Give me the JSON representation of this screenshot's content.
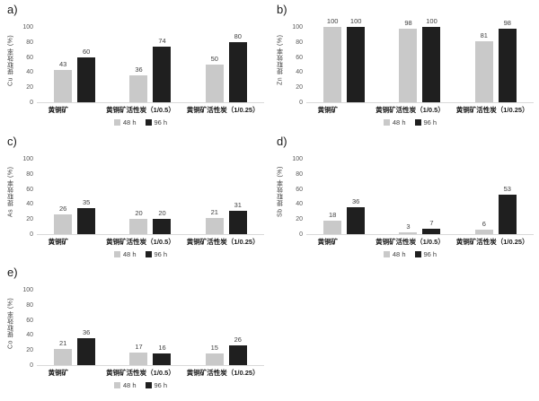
{
  "page": {
    "background": "#ffffff"
  },
  "colors": {
    "series_48h": "#c9c9c9",
    "series_96h": "#1f1f1f",
    "axis_line": "#d9d9d9",
    "tick_text": "#595959",
    "label_text": "#404040"
  },
  "chart_data": [
    {
      "type": "bar",
      "panel": "a)",
      "ylabel": "Cu 提取效率 (%)",
      "xlabel": "",
      "categories": [
        "黄铜矿",
        "黄铜矿活性炭（1/0.5）",
        "黄铜矿活性炭（1/0.25）"
      ],
      "series": [
        {
          "name": "48 h",
          "color": "#c9c9c9",
          "values": [
            43,
            36,
            50
          ]
        },
        {
          "name": "96 h",
          "color": "#1f1f1f",
          "values": [
            60,
            74,
            80
          ]
        }
      ],
      "ylim": [
        0,
        100
      ],
      "yticks": [
        0,
        20,
        40,
        60,
        80,
        100
      ],
      "grid": false,
      "legend_position": "bottom"
    },
    {
      "type": "bar",
      "panel": "b)",
      "ylabel": "Zn 提取效率 (%)",
      "xlabel": "",
      "categories": [
        "黄铜矿",
        "黄铜矿活性炭（1/0.5）",
        "黄铜矿活性炭（1/0.25）"
      ],
      "series": [
        {
          "name": "48 h",
          "color": "#c9c9c9",
          "values": [
            100,
            98,
            81
          ]
        },
        {
          "name": "96 h",
          "color": "#1f1f1f",
          "values": [
            100,
            100,
            98
          ]
        }
      ],
      "ylim": [
        0,
        100
      ],
      "yticks": [
        0,
        20,
        40,
        60,
        80,
        100
      ],
      "grid": false,
      "legend_position": "bottom"
    },
    {
      "type": "bar",
      "panel": "c)",
      "ylabel": "As 提取效率 (%)",
      "xlabel": "",
      "categories": [
        "黄铜矿",
        "黄铜矿活性炭（1/0.5）",
        "黄铜矿活性炭（1/0.25）"
      ],
      "series": [
        {
          "name": "48 h",
          "color": "#c9c9c9",
          "values": [
            26,
            20,
            21
          ]
        },
        {
          "name": "96 h",
          "color": "#1f1f1f",
          "values": [
            35,
            20,
            31
          ]
        }
      ],
      "ylim": [
        0,
        100
      ],
      "yticks": [
        0,
        20,
        40,
        60,
        80,
        100
      ],
      "grid": false,
      "legend_position": "bottom"
    },
    {
      "type": "bar",
      "panel": "d)",
      "ylabel": "Sb 提取效率 (%)",
      "xlabel": "",
      "categories": [
        "黄铜矿",
        "黄铜矿活性炭（1/0.5）",
        "黄铜矿活性炭（1/0.25）"
      ],
      "series": [
        {
          "name": "48 h",
          "color": "#c9c9c9",
          "values": [
            18,
            3,
            6
          ]
        },
        {
          "name": "96 h",
          "color": "#1f1f1f",
          "values": [
            36,
            7,
            53
          ]
        }
      ],
      "ylim": [
        0,
        100
      ],
      "yticks": [
        0,
        20,
        40,
        60,
        80,
        100
      ],
      "grid": false,
      "legend_position": "bottom"
    },
    {
      "type": "bar",
      "panel": "e)",
      "ylabel": "Co 提取效率 (%)",
      "xlabel": "",
      "categories": [
        "黄铜矿",
        "黄铜矿活性炭（1/0.5）",
        "黄铜矿活性炭（1/0.25）"
      ],
      "series": [
        {
          "name": "48 h",
          "color": "#c9c9c9",
          "values": [
            21,
            17,
            15
          ]
        },
        {
          "name": "96 h",
          "color": "#1f1f1f",
          "values": [
            36,
            16,
            26
          ]
        }
      ],
      "ylim": [
        0,
        100
      ],
      "yticks": [
        0,
        20,
        40,
        60,
        80,
        100
      ],
      "grid": false,
      "legend_position": "bottom"
    }
  ]
}
